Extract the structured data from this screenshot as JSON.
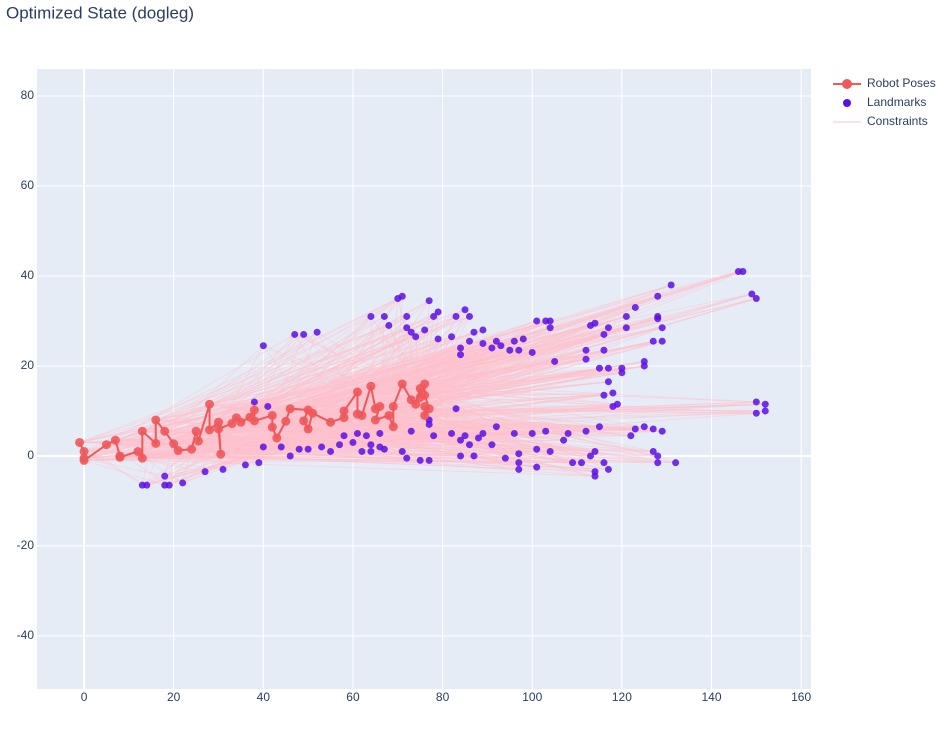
{
  "chart_data": {
    "type": "scatter",
    "title": "Optimized State (dogleg)",
    "xlim": [
      -10.5,
      162.2
    ],
    "ylim": [
      -51.8,
      86
    ],
    "xticks": [
      0,
      20,
      40,
      60,
      80,
      100,
      120,
      140,
      160
    ],
    "yticks": [
      -40,
      -20,
      0,
      20,
      40,
      60,
      80
    ],
    "grid": true,
    "legend": "top-right",
    "series": [
      {
        "name": "Robot Poses",
        "color": "#f0585a",
        "mode": "lines+markers",
        "x": [
          -1,
          0,
          0,
          0,
          5,
          7,
          8,
          8,
          12,
          13,
          13,
          16,
          16,
          18,
          20,
          21,
          24,
          25,
          25.5,
          28,
          28,
          30,
          30.5,
          30,
          33,
          34,
          35,
          37,
          38,
          38,
          42,
          42,
          43,
          45,
          46,
          50,
          49,
          50,
          51,
          55,
          58,
          58,
          61,
          61,
          62,
          64,
          65,
          66,
          65,
          68,
          69,
          69,
          71,
          73,
          74,
          75,
          75,
          76,
          76,
          77,
          76,
          76
        ],
        "y": [
          3,
          1,
          -0.5,
          -1,
          2.5,
          3.5,
          0,
          -0.3,
          1,
          -0.5,
          5.5,
          2.8,
          8,
          5.5,
          2.7,
          1.2,
          1.5,
          5.5,
          3.3,
          11.5,
          5.8,
          7.5,
          0.4,
          6,
          7.2,
          8.5,
          7.5,
          8.6,
          10.2,
          7.8,
          9,
          6.4,
          4,
          7.7,
          10.5,
          10.2,
          7.8,
          6,
          9.5,
          7.5,
          8.5,
          10,
          14.2,
          9.3,
          9,
          15.5,
          10.5,
          11,
          8,
          9,
          6.5,
          11,
          16,
          12.5,
          11.5,
          15,
          13,
          16,
          13.5,
          10.5,
          9,
          11
        ]
      },
      {
        "name": "Landmarks",
        "color": "#5c0ee8",
        "mode": "markers",
        "x": [
          13,
          14,
          18,
          18,
          19,
          22,
          27,
          31,
          36,
          39,
          40,
          40,
          38,
          41,
          44,
          46,
          47,
          48,
          49,
          50,
          52,
          53,
          55,
          57,
          58,
          60,
          61,
          62,
          63,
          64,
          64,
          66,
          66,
          67,
          64,
          67,
          68,
          70,
          71,
          72,
          72,
          73,
          73,
          74,
          76,
          77,
          78,
          79,
          79,
          77,
          77,
          78,
          77,
          75,
          72,
          71,
          82,
          83,
          84,
          84,
          85,
          86,
          86,
          87,
          89,
          89,
          91,
          92,
          93,
          95,
          96,
          97,
          98,
          100,
          101,
          103,
          104,
          104,
          105,
          83,
          82,
          84,
          85,
          86,
          84,
          87,
          88,
          89,
          91,
          92,
          94,
          96,
          97,
          97,
          97,
          100,
          101,
          101,
          103,
          104,
          107,
          108,
          109,
          111,
          112,
          112,
          113,
          114,
          116,
          116,
          117,
          115,
          117,
          117,
          116,
          118,
          118,
          119,
          112,
          113,
          114,
          114,
          114,
          116,
          117,
          115,
          120,
          120,
          121,
          121,
          123,
          122,
          123,
          125,
          125,
          125,
          127,
          127,
          128,
          128,
          127,
          128,
          128,
          128,
          129,
          129,
          129,
          131,
          132,
          146,
          147,
          149,
          150,
          150,
          150,
          152,
          152
        ],
        "y": [
          -6.5,
          -6.5,
          -4.5,
          -6.5,
          -6.5,
          -6,
          -3.5,
          -3,
          -2,
          -1.5,
          2,
          24.5,
          12,
          11,
          2,
          0,
          27,
          1.5,
          27,
          1.5,
          27.5,
          2,
          1,
          2.5,
          4.5,
          3,
          5,
          1,
          4.5,
          1,
          2.5,
          5,
          2,
          1.5,
          31,
          31,
          29,
          35,
          35.5,
          31,
          28.5,
          27.5,
          5.5,
          26.5,
          28,
          34.5,
          31,
          32,
          26,
          8,
          7,
          4.5,
          -1,
          -1,
          -0.5,
          1,
          26.5,
          31,
          22.5,
          24,
          32.5,
          31,
          25.5,
          27.5,
          25,
          28,
          24,
          25.5,
          24.5,
          23.5,
          25.5,
          23.5,
          26,
          23,
          30,
          30,
          30,
          28.5,
          21,
          10.5,
          5,
          3.5,
          4.5,
          2.5,
          0,
          0,
          4,
          5,
          2.5,
          6.5,
          -0.5,
          5,
          -3,
          -1.5,
          0.5,
          5,
          1.5,
          -2.5,
          5.5,
          1,
          3.5,
          5,
          -1.5,
          -1.5,
          23.5,
          21.5,
          29,
          29.5,
          27,
          23.5,
          28.5,
          19.5,
          19.5,
          16.5,
          13.5,
          11,
          14,
          11.5,
          5.5,
          0,
          1,
          -3.5,
          -4.5,
          -1.5,
          -3,
          6.5,
          19.5,
          18.5,
          28.5,
          31,
          33,
          4.5,
          6,
          20,
          21,
          6.5,
          6,
          1,
          0,
          -1.5,
          25.5,
          30.5,
          31,
          35.5,
          28.5,
          25.5,
          5.5,
          38,
          -1.5,
          41,
          41,
          36,
          35,
          12,
          9.5,
          10,
          11.5
        ]
      },
      {
        "name": "Constraints",
        "color": "#ffc0cb",
        "mode": "lines"
      }
    ]
  }
}
